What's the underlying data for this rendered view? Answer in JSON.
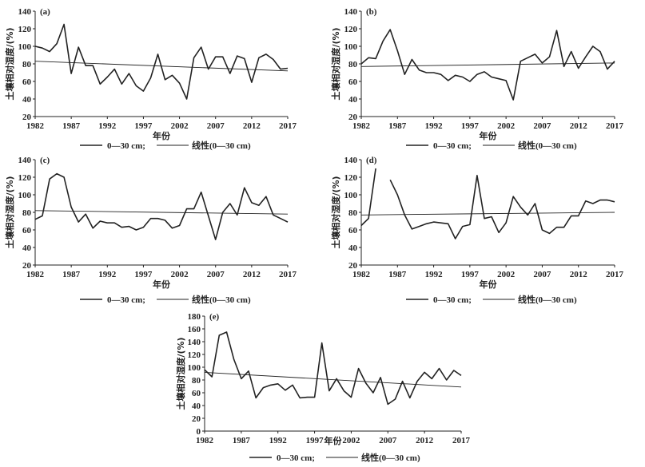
{
  "chart_data": [
    {
      "type": "line",
      "panel_label": "(a)",
      "ylabel": "土壤相对湿度/(%)",
      "xlabel": "年份",
      "ylim": [
        20,
        140
      ],
      "yticks": [
        20,
        40,
        60,
        80,
        100,
        120,
        140
      ],
      "xlim": [
        1982,
        2017
      ],
      "xticks": [
        1982,
        1987,
        1992,
        1997,
        2002,
        2007,
        2012,
        2017
      ],
      "legend": [
        "0—30 cm;",
        "线性(0—30 cm)"
      ],
      "series": [
        {
          "name": "0—30 cm",
          "x": [
            1982,
            1983,
            1984,
            1985,
            1986,
            1987,
            1988,
            1989,
            1990,
            1991,
            1992,
            1993,
            1994,
            1995,
            1996,
            1997,
            1998,
            1999,
            2000,
            2001,
            2002,
            2003,
            2004,
            2005,
            2006,
            2007,
            2008,
            2009,
            2010,
            2011,
            2012,
            2013,
            2014,
            2015,
            2016,
            2017
          ],
          "values": [
            100,
            98,
            94,
            103,
            125,
            69,
            99,
            78,
            78,
            57,
            65,
            74,
            57,
            69,
            55,
            49,
            64,
            91,
            62,
            67,
            58,
            40,
            87,
            99,
            74,
            88,
            88,
            69,
            89,
            86,
            59,
            87,
            91,
            85,
            74,
            75
          ]
        },
        {
          "name": "线性(0—30 cm)",
          "x": [
            1982,
            2017
          ],
          "values": [
            83,
            72
          ]
        }
      ]
    },
    {
      "type": "line",
      "panel_label": "(b)",
      "ylabel": "土壤相对湿度/(%)",
      "xlabel": "年份",
      "ylim": [
        20,
        140
      ],
      "yticks": [
        20,
        40,
        60,
        80,
        100,
        120,
        140
      ],
      "xlim": [
        1982,
        2017
      ],
      "xticks": [
        1982,
        1987,
        1992,
        1997,
        2002,
        2007,
        2012,
        2017
      ],
      "legend": [
        "0—30 cm;",
        "线性(0—30 cm)"
      ],
      "series": [
        {
          "name": "0—30 cm",
          "x": [
            1982,
            1983,
            1984,
            1985,
            1986,
            1987,
            1988,
            1989,
            1990,
            1991,
            1992,
            1993,
            1994,
            1995,
            1996,
            1997,
            1998,
            1999,
            2000,
            2001,
            2002,
            2003,
            2004,
            2005,
            2006,
            2007,
            2008,
            2009,
            2010,
            2011,
            2012,
            2013,
            2014,
            2015,
            2016,
            2017
          ],
          "values": [
            80,
            87,
            86,
            106,
            119,
            95,
            68,
            85,
            73,
            70,
            70,
            68,
            61,
            67,
            65,
            60,
            68,
            71,
            65,
            63,
            61,
            39,
            83,
            87,
            91,
            81,
            88,
            118,
            77,
            94,
            75,
            88,
            100,
            94,
            74,
            83
          ]
        },
        {
          "name": "线性(0—30 cm)",
          "x": [
            1982,
            2017
          ],
          "values": [
            77,
            81
          ]
        }
      ]
    },
    {
      "type": "line",
      "panel_label": "(c)",
      "ylabel": "土壤相对湿度/(%)",
      "xlabel": "年份",
      "ylim": [
        20,
        140
      ],
      "yticks": [
        20,
        40,
        60,
        80,
        100,
        120,
        140
      ],
      "xlim": [
        1982,
        2017
      ],
      "xticks": [
        1982,
        1987,
        1992,
        1997,
        2002,
        2007,
        2012,
        2017
      ],
      "legend": [
        "0—30 cm;",
        "线性(0—30 cm)"
      ],
      "series": [
        {
          "name": "0—30 cm",
          "x": [
            1982,
            1983,
            1984,
            1985,
            1986,
            1987,
            1988,
            1989,
            1990,
            1991,
            1992,
            1993,
            1994,
            1995,
            1996,
            1997,
            1998,
            1999,
            2000,
            2001,
            2002,
            2003,
            2004,
            2005,
            2006,
            2007,
            2008,
            2009,
            2010,
            2011,
            2012,
            2013,
            2014,
            2015,
            2016,
            2017
          ],
          "values": [
            72,
            76,
            118,
            124,
            120,
            86,
            69,
            78,
            62,
            70,
            68,
            68,
            63,
            64,
            60,
            63,
            73,
            73,
            71,
            62,
            65,
            84,
            84,
            103,
            76,
            49,
            80,
            90,
            77,
            108,
            91,
            88,
            98,
            77,
            73,
            69
          ]
        },
        {
          "name": "线性(0—30 cm)",
          "x": [
            1982,
            2017
          ],
          "values": [
            82,
            78
          ]
        }
      ]
    },
    {
      "type": "line",
      "panel_label": "(d)",
      "ylabel": "土壤相对湿度/(%)",
      "xlabel": "年份",
      "ylim": [
        20,
        140
      ],
      "yticks": [
        20,
        40,
        60,
        80,
        100,
        120,
        140
      ],
      "xlim": [
        1982,
        2017
      ],
      "xticks": [
        1982,
        1987,
        1992,
        1997,
        2002,
        2007,
        2012,
        2017
      ],
      "legend": [
        "0—30 cm;",
        "线性(0—30 cm)"
      ],
      "series": [
        {
          "name": "0—30 cm",
          "x": [
            1982,
            1983,
            1984
          ],
          "values": [
            65,
            73,
            130
          ]
        },
        {
          "name": "0—30 cm",
          "x": [
            1986,
            1987,
            1988,
            1989,
            1990,
            1991,
            1992,
            1993,
            1994,
            1995,
            1996,
            1997,
            1998,
            1999,
            2000,
            2001,
            2002,
            2003,
            2004,
            2005,
            2006,
            2007,
            2008,
            2009,
            2010,
            2011,
            2012,
            2013,
            2014,
            2015,
            2016,
            2017
          ],
          "values": [
            117,
            100,
            77,
            61,
            64,
            67,
            69,
            68,
            67,
            50,
            64,
            66,
            122,
            73,
            75,
            57,
            68,
            98,
            86,
            77,
            90,
            60,
            56,
            63,
            63,
            76,
            76,
            93,
            90,
            94,
            94,
            92
          ]
        },
        {
          "name": "线性(0—30 cm)",
          "x": [
            1982,
            2017
          ],
          "values": [
            77,
            80
          ]
        }
      ]
    },
    {
      "type": "line",
      "panel_label": "(e)",
      "ylabel": "土壤相对湿度/(%)",
      "xlabel": "年份",
      "ylim": [
        0,
        180
      ],
      "yticks": [
        0,
        20,
        40,
        60,
        80,
        100,
        120,
        140,
        160,
        180
      ],
      "xlim": [
        1982,
        2017
      ],
      "xticks": [
        1982,
        1987,
        1992,
        1997,
        2002,
        2007,
        2012,
        2017
      ],
      "legend": [
        "0—30 cm;",
        "线性(0—30 cm)"
      ],
      "series": [
        {
          "name": "0—30 cm",
          "x": [
            1982,
            1983,
            1984,
            1985,
            1986,
            1987,
            1988,
            1989,
            1990,
            1991,
            1992,
            1993,
            1994,
            1995,
            1996,
            1997,
            1998,
            1999,
            2000,
            2001,
            2002,
            2003,
            2004,
            2005,
            2006,
            2007,
            2008,
            2009,
            2010,
            2011,
            2012,
            2013,
            2014,
            2015,
            2016,
            2017
          ],
          "values": [
            96,
            85,
            150,
            155,
            112,
            82,
            94,
            52,
            68,
            72,
            74,
            64,
            72,
            52,
            53,
            53,
            138,
            63,
            82,
            63,
            53,
            98,
            75,
            60,
            84,
            42,
            50,
            78,
            52,
            78,
            92,
            82,
            98,
            80,
            95,
            87
          ]
        },
        {
          "name": "线性(0—30 cm)",
          "x": [
            1982,
            2017
          ],
          "values": [
            92,
            69
          ]
        }
      ]
    }
  ]
}
